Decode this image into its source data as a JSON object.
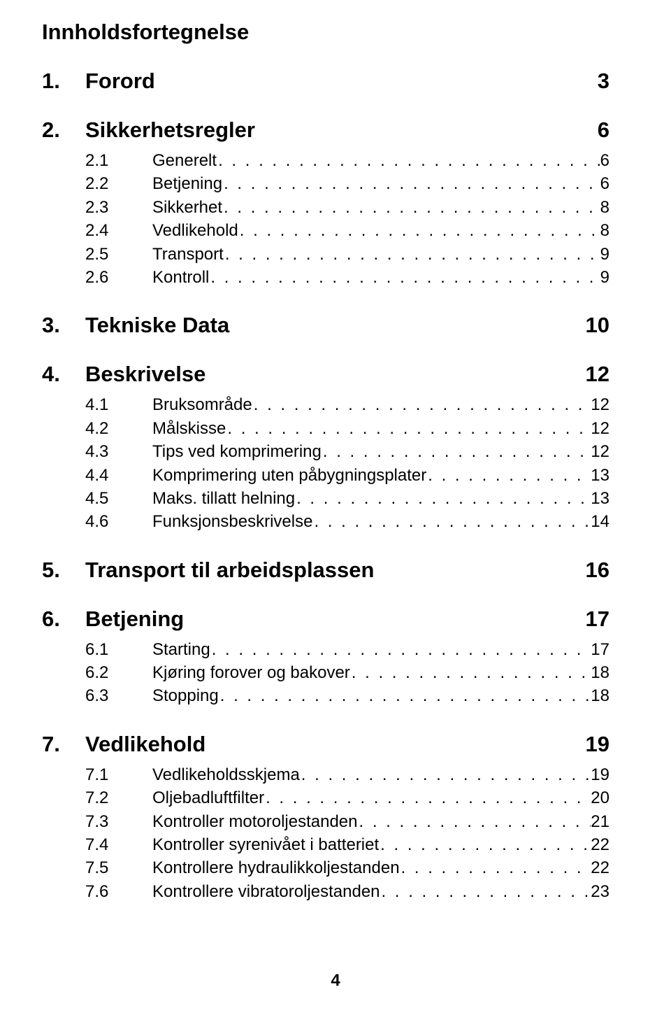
{
  "title": "Innholdsfortegnelse",
  "footer_page": "4",
  "colors": {
    "background": "#ffffff",
    "text": "#000000"
  },
  "typography": {
    "title_size_pt": 23,
    "section_size_pt": 23,
    "sub_size_pt": 18,
    "font_family": "Arial"
  },
  "sections": [
    {
      "num": "1.",
      "label": "Forord",
      "page": "3",
      "subs": []
    },
    {
      "num": "2.",
      "label": "Sikkerhetsregler",
      "page": "6",
      "subs": [
        {
          "snum": "2.1",
          "slabel": "Generelt",
          "spage": "6"
        },
        {
          "snum": "2.2",
          "slabel": "Betjening",
          "spage": "6"
        },
        {
          "snum": "2.3",
          "slabel": "Sikkerhet",
          "spage": "8"
        },
        {
          "snum": "2.4",
          "slabel": "Vedlikehold",
          "spage": "8"
        },
        {
          "snum": "2.5",
          "slabel": "Transport",
          "spage": "9"
        },
        {
          "snum": "2.6",
          "slabel": "Kontroll",
          "spage": "9"
        }
      ]
    },
    {
      "num": "3.",
      "label": "Tekniske Data",
      "page": "10",
      "subs": []
    },
    {
      "num": "4.",
      "label": "Beskrivelse",
      "page": "12",
      "subs": [
        {
          "snum": "4.1",
          "slabel": "Bruksområde",
          "spage": "12"
        },
        {
          "snum": "4.2",
          "slabel": "Målskisse",
          "spage": "12"
        },
        {
          "snum": "4.3",
          "slabel": "Tips ved komprimering",
          "spage": "12"
        },
        {
          "snum": "4.4",
          "slabel": "Komprimering uten påbygningsplater",
          "spage": "13"
        },
        {
          "snum": "4.5",
          "slabel": "Maks. tillatt helning",
          "spage": "13"
        },
        {
          "snum": "4.6",
          "slabel": "Funksjonsbeskrivelse",
          "spage": "14"
        }
      ]
    },
    {
      "num": "5.",
      "label": "Transport til arbeidsplassen",
      "page": "16",
      "subs": []
    },
    {
      "num": "6.",
      "label": "Betjening",
      "page": "17",
      "subs": [
        {
          "snum": "6.1",
          "slabel": "Starting",
          "spage": "17"
        },
        {
          "snum": "6.2",
          "slabel": "Kjøring forover og bakover",
          "spage": "18"
        },
        {
          "snum": "6.3",
          "slabel": "Stopping",
          "spage": "18"
        }
      ]
    },
    {
      "num": "7.",
      "label": "Vedlikehold",
      "page": "19",
      "subs": [
        {
          "snum": "7.1",
          "slabel": "Vedlikeholdsskjema",
          "spage": "19"
        },
        {
          "snum": "7.2",
          "slabel": "Oljebadluftfilter",
          "spage": "20"
        },
        {
          "snum": "7.3",
          "slabel": "Kontroller motoroljestanden",
          "spage": "21"
        },
        {
          "snum": "7.4",
          "slabel": "Kontroller syrenivået i batteriet",
          "spage": "22"
        },
        {
          "snum": "7.5",
          "slabel": "Kontrollere hydraulikkoljestanden",
          "spage": "22"
        },
        {
          "snum": "7.6",
          "slabel": "Kontrollere vibratoroljestanden",
          "spage": "23"
        }
      ]
    }
  ]
}
